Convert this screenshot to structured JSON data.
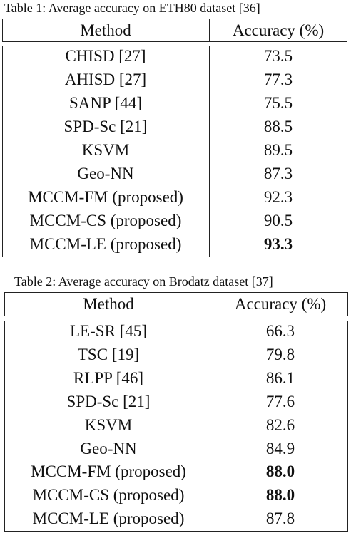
{
  "tables": [
    {
      "caption": "Table 1: Average accuracy on ETH80 dataset [36]",
      "header": [
        "Method",
        "Accuracy (%)"
      ],
      "rows": [
        [
          "CHISD [27]",
          "73.5"
        ],
        [
          "AHISD [27]",
          "77.3"
        ],
        [
          "SANP [44]",
          "75.5"
        ],
        [
          "SPD-Sc [21]",
          "88.5"
        ],
        [
          "KSVM",
          "89.5"
        ],
        [
          "Geo-NN",
          "87.3"
        ],
        [
          "MCCM-FM (proposed)",
          "92.3"
        ],
        [
          "MCCM-CS (proposed)",
          "90.5"
        ],
        [
          "MCCM-LE (proposed)",
          "93.3"
        ]
      ],
      "bold_rows": [
        8
      ]
    },
    {
      "caption": "Table 2: Average accuracy on Brodatz dataset [37]",
      "header": [
        "Method",
        "Accuracy (%)"
      ],
      "rows": [
        [
          "LE-SR [45]",
          "66.3"
        ],
        [
          "TSC [19]",
          "79.8"
        ],
        [
          "RLPP [46]",
          "86.1"
        ],
        [
          "SPD-Sc [21]",
          "77.6"
        ],
        [
          "KSVM",
          "82.6"
        ],
        [
          "Geo-NN",
          "84.9"
        ],
        [
          "MCCM-FM (proposed)",
          "88.0"
        ],
        [
          "MCCM-CS (proposed)",
          "88.0"
        ],
        [
          "MCCM-LE (proposed)",
          "87.8"
        ]
      ],
      "bold_rows": [
        6,
        7
      ]
    }
  ]
}
